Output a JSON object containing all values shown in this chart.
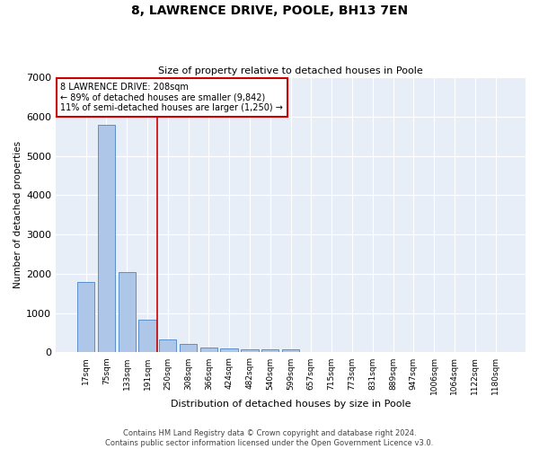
{
  "title": "8, LAWRENCE DRIVE, POOLE, BH13 7EN",
  "subtitle": "Size of property relative to detached houses in Poole",
  "xlabel": "Distribution of detached houses by size in Poole",
  "ylabel": "Number of detached properties",
  "bin_labels": [
    "17sqm",
    "75sqm",
    "133sqm",
    "191sqm",
    "250sqm",
    "308sqm",
    "366sqm",
    "424sqm",
    "482sqm",
    "540sqm",
    "599sqm",
    "657sqm",
    "715sqm",
    "773sqm",
    "831sqm",
    "889sqm",
    "947sqm",
    "1006sqm",
    "1064sqm",
    "1122sqm",
    "1180sqm"
  ],
  "bar_values": [
    1800,
    5800,
    2050,
    840,
    340,
    220,
    130,
    110,
    80,
    70,
    70,
    0,
    0,
    0,
    0,
    0,
    0,
    0,
    0,
    0,
    0
  ],
  "bar_color": "#aec6e8",
  "bar_edge_color": "#5b8fc9",
  "vline_x": 3.5,
  "vline_color": "#cc0000",
  "annotation_title": "8 LAWRENCE DRIVE: 208sqm",
  "annotation_line1": "← 89% of detached houses are smaller (9,842)",
  "annotation_line2": "11% of semi-detached houses are larger (1,250) →",
  "annotation_box_color": "#cc0000",
  "ylim": [
    0,
    7000
  ],
  "yticks": [
    0,
    1000,
    2000,
    3000,
    4000,
    5000,
    6000,
    7000
  ],
  "background_color": "#e8eef8",
  "grid_color": "#ffffff",
  "footer1": "Contains HM Land Registry data © Crown copyright and database right 2024.",
  "footer2": "Contains public sector information licensed under the Open Government Licence v3.0."
}
